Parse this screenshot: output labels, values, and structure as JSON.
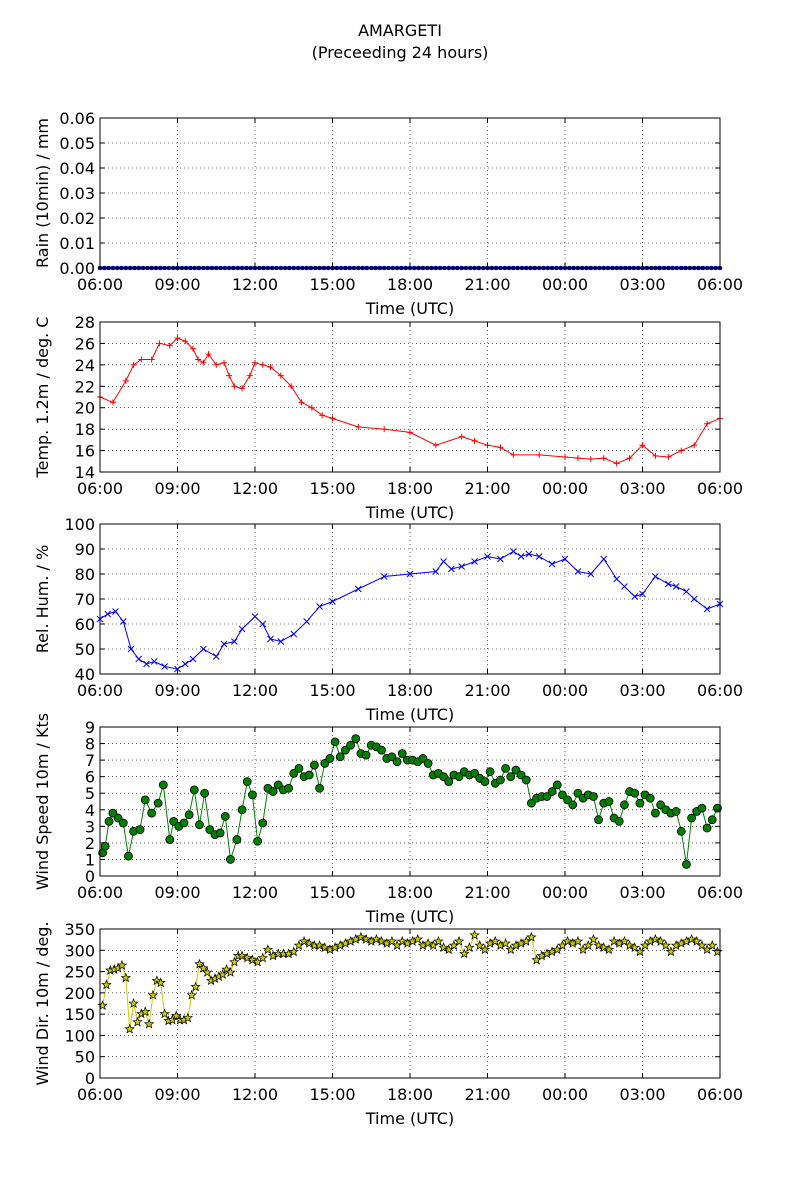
{
  "title": "AMARGETI",
  "subtitle": "(Preceeding 24 hours)",
  "time_ticks": [
    "06:00",
    "09:00",
    "12:00",
    "15:00",
    "18:00",
    "21:00",
    "00:00",
    "03:00",
    "06:00"
  ],
  "chart_data": [
    {
      "type": "line",
      "ylabel": "Rain (10min) / mm",
      "xlabel": "Time (UTC)",
      "ylim": [
        0,
        0.06
      ],
      "yticks": [
        "0.00",
        "0.01",
        "0.02",
        "0.03",
        "0.04",
        "0.05",
        "0.06"
      ],
      "grid": true,
      "color": "#0000ff",
      "marker": "dot",
      "series": [
        {
          "x_hours": [
            0,
            24
          ],
          "values": [
            0,
            0
          ]
        }
      ]
    },
    {
      "type": "line",
      "ylabel": "Temp. 1.2m / deg. C",
      "xlabel": "Time (UTC)",
      "ylim": [
        14,
        28
      ],
      "yticks": [
        "14",
        "16",
        "18",
        "20",
        "22",
        "24",
        "26",
        "28"
      ],
      "grid": true,
      "color": "#ff0000",
      "marker": "plus",
      "series": [
        {
          "x_hours": [
            0,
            0.5,
            1.0,
            1.3,
            1.6,
            2.0,
            2.3,
            2.7,
            3.0,
            3.3,
            3.6,
            3.8,
            4.0,
            4.2,
            4.5,
            4.8,
            5.0,
            5.2,
            5.5,
            5.8,
            6.0,
            6.3,
            6.6,
            7.0,
            7.4,
            7.8,
            8.2,
            8.6,
            9.0,
            10.0,
            11.0,
            12.0,
            13.0,
            14.0,
            14.5,
            15.0,
            15.5,
            16.0,
            17.0,
            18.0,
            18.5,
            19.0,
            19.5,
            20.0,
            20.5,
            21.0,
            21.5,
            22.0,
            22.5,
            23.0,
            23.5,
            24.0
          ],
          "values": [
            21.0,
            20.5,
            22.5,
            24.0,
            24.5,
            24.5,
            26.0,
            25.8,
            26.5,
            26.2,
            25.5,
            24.5,
            24.2,
            25.0,
            24.0,
            24.2,
            23.0,
            22.0,
            21.8,
            23.0,
            24.2,
            24.0,
            23.8,
            23.0,
            22.0,
            20.5,
            20.0,
            19.3,
            19.0,
            18.2,
            18.0,
            17.7,
            16.5,
            17.3,
            16.9,
            16.5,
            16.3,
            15.6,
            15.6,
            15.4,
            15.3,
            15.2,
            15.3,
            14.8,
            15.3,
            16.5,
            15.5,
            15.4,
            16.0,
            16.5,
            18.5,
            19.0
          ]
        }
      ]
    },
    {
      "type": "line",
      "ylabel": "Rel. Hum. / %",
      "xlabel": "Time (UTC)",
      "ylim": [
        40,
        100
      ],
      "yticks": [
        "40",
        "50",
        "60",
        "70",
        "80",
        "90",
        "100"
      ],
      "grid": true,
      "color": "#0000ff",
      "marker": "x",
      "series": [
        {
          "x_hours": [
            0,
            0.3,
            0.6,
            0.9,
            1.2,
            1.5,
            1.8,
            2.1,
            2.5,
            3.0,
            3.3,
            3.6,
            4.0,
            4.5,
            4.8,
            5.2,
            5.5,
            6.0,
            6.3,
            6.6,
            7.0,
            7.5,
            8.0,
            8.5,
            9.0,
            10.0,
            11.0,
            12.0,
            13.0,
            13.3,
            13.6,
            14.0,
            14.5,
            15.0,
            15.5,
            16.0,
            16.3,
            16.6,
            17.0,
            17.5,
            18.0,
            18.5,
            19.0,
            19.5,
            20.0,
            20.3,
            20.7,
            21.0,
            21.5,
            22.0,
            22.3,
            22.7,
            23.0,
            23.5,
            24.0
          ],
          "values": [
            62,
            64,
            65,
            61,
            50,
            46,
            44,
            45,
            43,
            42,
            44,
            46,
            50,
            47,
            52,
            53,
            58,
            63,
            60,
            54,
            53,
            56,
            61,
            67,
            69,
            74,
            79,
            80,
            81,
            85,
            82,
            83,
            85,
            87,
            86,
            89,
            87,
            88,
            87,
            84,
            86,
            81,
            80,
            86,
            78,
            75,
            71,
            72,
            79,
            76,
            75,
            73,
            70,
            66,
            68
          ]
        }
      ]
    },
    {
      "type": "line",
      "ylabel": "Wind Speed 10m / Kts",
      "xlabel": "Time (UTC)",
      "ylim": [
        0,
        9
      ],
      "yticks": [
        "0",
        "1",
        "2",
        "3",
        "4",
        "5",
        "6",
        "7",
        "8",
        "9"
      ],
      "grid": true,
      "color": "#008000",
      "marker": "circle",
      "series": [
        {
          "x_hours": [
            0.1,
            0.2,
            0.35,
            0.5,
            0.7,
            0.9,
            1.1,
            1.3,
            1.55,
            1.75,
            2.0,
            2.25,
            2.45,
            2.7,
            2.85,
            3.05,
            3.25,
            3.45,
            3.65,
            3.85,
            4.05,
            4.25,
            4.45,
            4.65,
            4.85,
            5.05,
            5.3,
            5.5,
            5.7,
            5.9,
            6.1,
            6.3,
            6.5,
            6.7,
            6.9,
            7.1,
            7.3,
            7.5,
            7.7,
            7.9,
            8.1,
            8.3,
            8.5,
            8.7,
            8.9,
            9.1,
            9.3,
            9.5,
            9.7,
            9.9,
            10.1,
            10.3,
            10.5,
            10.7,
            10.9,
            11.1,
            11.3,
            11.5,
            11.7,
            11.9,
            12.1,
            12.3,
            12.5,
            12.7,
            12.9,
            13.1,
            13.3,
            13.5,
            13.7,
            13.9,
            14.1,
            14.3,
            14.5,
            14.7,
            14.9,
            15.1,
            15.3,
            15.5,
            15.7,
            15.9,
            16.1,
            16.3,
            16.5,
            16.7,
            16.9,
            17.1,
            17.3,
            17.5,
            17.7,
            17.9,
            18.1,
            18.3,
            18.5,
            18.7,
            18.9,
            19.1,
            19.3,
            19.5,
            19.7,
            19.9,
            20.1,
            20.3,
            20.5,
            20.7,
            20.9,
            21.1,
            21.3,
            21.5,
            21.7,
            21.9,
            22.1,
            22.3,
            22.5,
            22.7,
            22.9,
            23.1,
            23.3,
            23.5,
            23.7,
            23.9
          ],
          "values": [
            1.4,
            1.8,
            3.3,
            3.8,
            3.5,
            3.2,
            1.2,
            2.7,
            2.8,
            4.6,
            3.8,
            4.4,
            5.5,
            2.2,
            3.3,
            3.0,
            3.2,
            3.7,
            5.2,
            3.1,
            5.0,
            2.8,
            2.5,
            2.6,
            3.6,
            1.0,
            2.2,
            4.0,
            5.7,
            4.9,
            2.1,
            3.2,
            5.3,
            5.1,
            5.5,
            5.2,
            5.3,
            6.2,
            6.5,
            6.0,
            6.1,
            6.7,
            5.3,
            6.8,
            7.1,
            8.1,
            7.2,
            7.6,
            7.9,
            8.3,
            7.4,
            7.3,
            7.9,
            7.8,
            7.6,
            7.1,
            7.2,
            6.9,
            7.4,
            7.0,
            7.0,
            6.9,
            7.1,
            6.8,
            6.1,
            6.2,
            6.0,
            5.7,
            6.1,
            6.0,
            6.3,
            6.1,
            6.2,
            5.9,
            5.7,
            6.3,
            5.6,
            5.8,
            6.5,
            6.0,
            6.4,
            6.1,
            5.8,
            4.4,
            4.7,
            4.8,
            4.8,
            5.1,
            5.5,
            4.9,
            4.6,
            4.3,
            5.0,
            4.7,
            4.9,
            4.8,
            3.4,
            4.4,
            4.5,
            3.5,
            3.3,
            4.3,
            5.1,
            5.0,
            4.4,
            4.9,
            4.7,
            3.8,
            4.3,
            4.0,
            3.8,
            3.9,
            2.7,
            0.7,
            3.5,
            3.9,
            4.1,
            2.9,
            3.4,
            4.1
          ]
        }
      ]
    },
    {
      "type": "line",
      "ylabel": "Wind Dir. 10m / deg.",
      "xlabel": "Time (UTC)",
      "ylim": [
        0,
        360
      ],
      "yticks": [
        "0",
        "50",
        "100",
        "150",
        "200",
        "250",
        "300",
        "350"
      ],
      "grid": true,
      "color": "#cccc00",
      "marker": "star",
      "series": [
        {
          "x_hours": [
            0.1,
            0.25,
            0.4,
            0.55,
            0.7,
            0.85,
            1.0,
            1.15,
            1.3,
            1.45,
            1.6,
            1.75,
            1.9,
            2.05,
            2.2,
            2.35,
            2.5,
            2.65,
            2.8,
            2.95,
            3.1,
            3.25,
            3.4,
            3.55,
            3.7,
            3.85,
            4.0,
            4.15,
            4.3,
            4.45,
            4.6,
            4.75,
            4.9,
            5.05,
            5.2,
            5.35,
            5.5,
            5.7,
            5.9,
            6.1,
            6.3,
            6.5,
            6.7,
            6.9,
            7.1,
            7.3,
            7.5,
            7.7,
            7.9,
            8.1,
            8.3,
            8.5,
            8.7,
            8.9,
            9.1,
            9.3,
            9.5,
            9.7,
            9.9,
            10.1,
            10.3,
            10.5,
            10.7,
            10.9,
            11.1,
            11.3,
            11.5,
            11.7,
            11.9,
            12.1,
            12.3,
            12.5,
            12.7,
            12.9,
            13.1,
            13.3,
            13.5,
            13.7,
            13.9,
            14.1,
            14.3,
            14.5,
            14.7,
            14.9,
            15.1,
            15.3,
            15.5,
            15.7,
            15.9,
            16.1,
            16.3,
            16.5,
            16.7,
            16.9,
            17.1,
            17.3,
            17.5,
            17.7,
            17.9,
            18.1,
            18.3,
            18.5,
            18.7,
            18.9,
            19.1,
            19.3,
            19.5,
            19.7,
            19.9,
            20.1,
            20.3,
            20.5,
            20.7,
            20.9,
            21.1,
            21.3,
            21.5,
            21.7,
            21.9,
            22.1,
            22.3,
            22.5,
            22.7,
            22.9,
            23.1,
            23.3,
            23.5,
            23.7,
            23.9
          ],
          "values": [
            175,
            225,
            260,
            262,
            265,
            272,
            242,
            118,
            180,
            135,
            155,
            160,
            130,
            200,
            235,
            230,
            155,
            138,
            140,
            150,
            140,
            140,
            145,
            200,
            220,
            275,
            265,
            255,
            235,
            240,
            245,
            250,
            262,
            255,
            280,
            295,
            295,
            290,
            285,
            280,
            290,
            310,
            295,
            300,
            300,
            300,
            305,
            320,
            330,
            325,
            320,
            320,
            315,
            310,
            315,
            320,
            325,
            330,
            335,
            340,
            335,
            330,
            335,
            330,
            325,
            330,
            320,
            330,
            325,
            330,
            335,
            320,
            325,
            320,
            330,
            315,
            310,
            320,
            330,
            300,
            315,
            345,
            320,
            310,
            325,
            330,
            320,
            325,
            310,
            320,
            325,
            330,
            340,
            285,
            295,
            300,
            305,
            310,
            320,
            330,
            325,
            330,
            310,
            320,
            335,
            320,
            315,
            310,
            330,
            325,
            330,
            320,
            315,
            305,
            320,
            330,
            335,
            330,
            320,
            305,
            320,
            325,
            330,
            335,
            330,
            320,
            310,
            320,
            305
          ]
        }
      ]
    }
  ]
}
